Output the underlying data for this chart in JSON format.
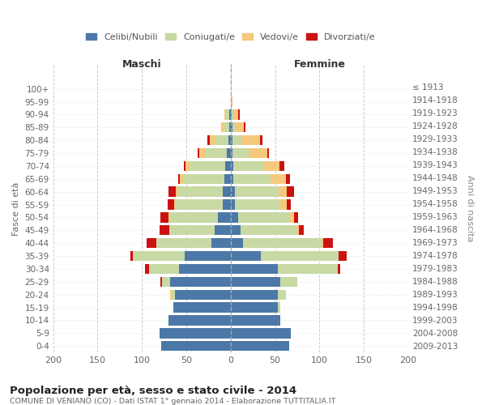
{
  "age_groups": [
    "0-4",
    "5-9",
    "10-14",
    "15-19",
    "20-24",
    "25-29",
    "30-34",
    "35-39",
    "40-44",
    "45-49",
    "50-54",
    "55-59",
    "60-64",
    "65-69",
    "70-74",
    "75-79",
    "80-84",
    "85-89",
    "90-94",
    "95-99",
    "100+"
  ],
  "birth_years": [
    "2009-2013",
    "2004-2008",
    "1999-2003",
    "1994-1998",
    "1989-1993",
    "1984-1988",
    "1979-1983",
    "1974-1978",
    "1969-1973",
    "1964-1968",
    "1959-1963",
    "1954-1958",
    "1949-1953",
    "1944-1948",
    "1939-1943",
    "1934-1938",
    "1929-1933",
    "1924-1928",
    "1919-1923",
    "1914-1918",
    "≤ 1913"
  ],
  "maschi_celibi": [
    78,
    80,
    70,
    65,
    63,
    68,
    58,
    52,
    22,
    18,
    14,
    9,
    9,
    7,
    6,
    4,
    3,
    2,
    2,
    0,
    0
  ],
  "maschi_coniugati": [
    0,
    0,
    0,
    0,
    3,
    9,
    34,
    58,
    62,
    51,
    54,
    53,
    51,
    47,
    40,
    24,
    14,
    5,
    3,
    0,
    0
  ],
  "maschi_vedovi": [
    0,
    0,
    0,
    0,
    2,
    0,
    0,
    0,
    0,
    0,
    2,
    2,
    2,
    3,
    5,
    7,
    7,
    4,
    2,
    0,
    0
  ],
  "maschi_divorziati": [
    0,
    0,
    0,
    0,
    0,
    2,
    5,
    3,
    11,
    11,
    9,
    7,
    8,
    2,
    2,
    2,
    2,
    0,
    0,
    0,
    0
  ],
  "femmine_nubili": [
    66,
    68,
    56,
    53,
    53,
    56,
    53,
    34,
    14,
    11,
    8,
    5,
    5,
    3,
    3,
    2,
    2,
    2,
    1,
    0,
    0
  ],
  "femmine_coniugate": [
    0,
    0,
    0,
    3,
    9,
    19,
    68,
    88,
    88,
    63,
    58,
    51,
    49,
    42,
    35,
    18,
    10,
    3,
    2,
    0,
    0
  ],
  "femmine_vedove": [
    0,
    0,
    0,
    0,
    0,
    0,
    0,
    0,
    2,
    3,
    5,
    7,
    9,
    17,
    17,
    21,
    21,
    10,
    5,
    2,
    0
  ],
  "femmine_divorziate": [
    0,
    0,
    0,
    0,
    0,
    0,
    2,
    9,
    11,
    5,
    5,
    5,
    8,
    5,
    5,
    2,
    3,
    2,
    2,
    0,
    0
  ],
  "color_celibi": "#4c78a8",
  "color_coniugati": "#c8d9a4",
  "color_vedovi": "#f5c97d",
  "color_divorziati": "#cc1111",
  "title_main": "Popolazione per età, sesso e stato civile - 2014",
  "title_sub": "COMUNE DI VENIANO (CO) - Dati ISTAT 1° gennaio 2014 - Elaborazione TUTTITALIA.IT",
  "xlabel_left": "Maschi",
  "xlabel_right": "Femmine",
  "ylabel_left": "Fasce di età",
  "ylabel_right": "Anni di nascita",
  "xlim": 200
}
